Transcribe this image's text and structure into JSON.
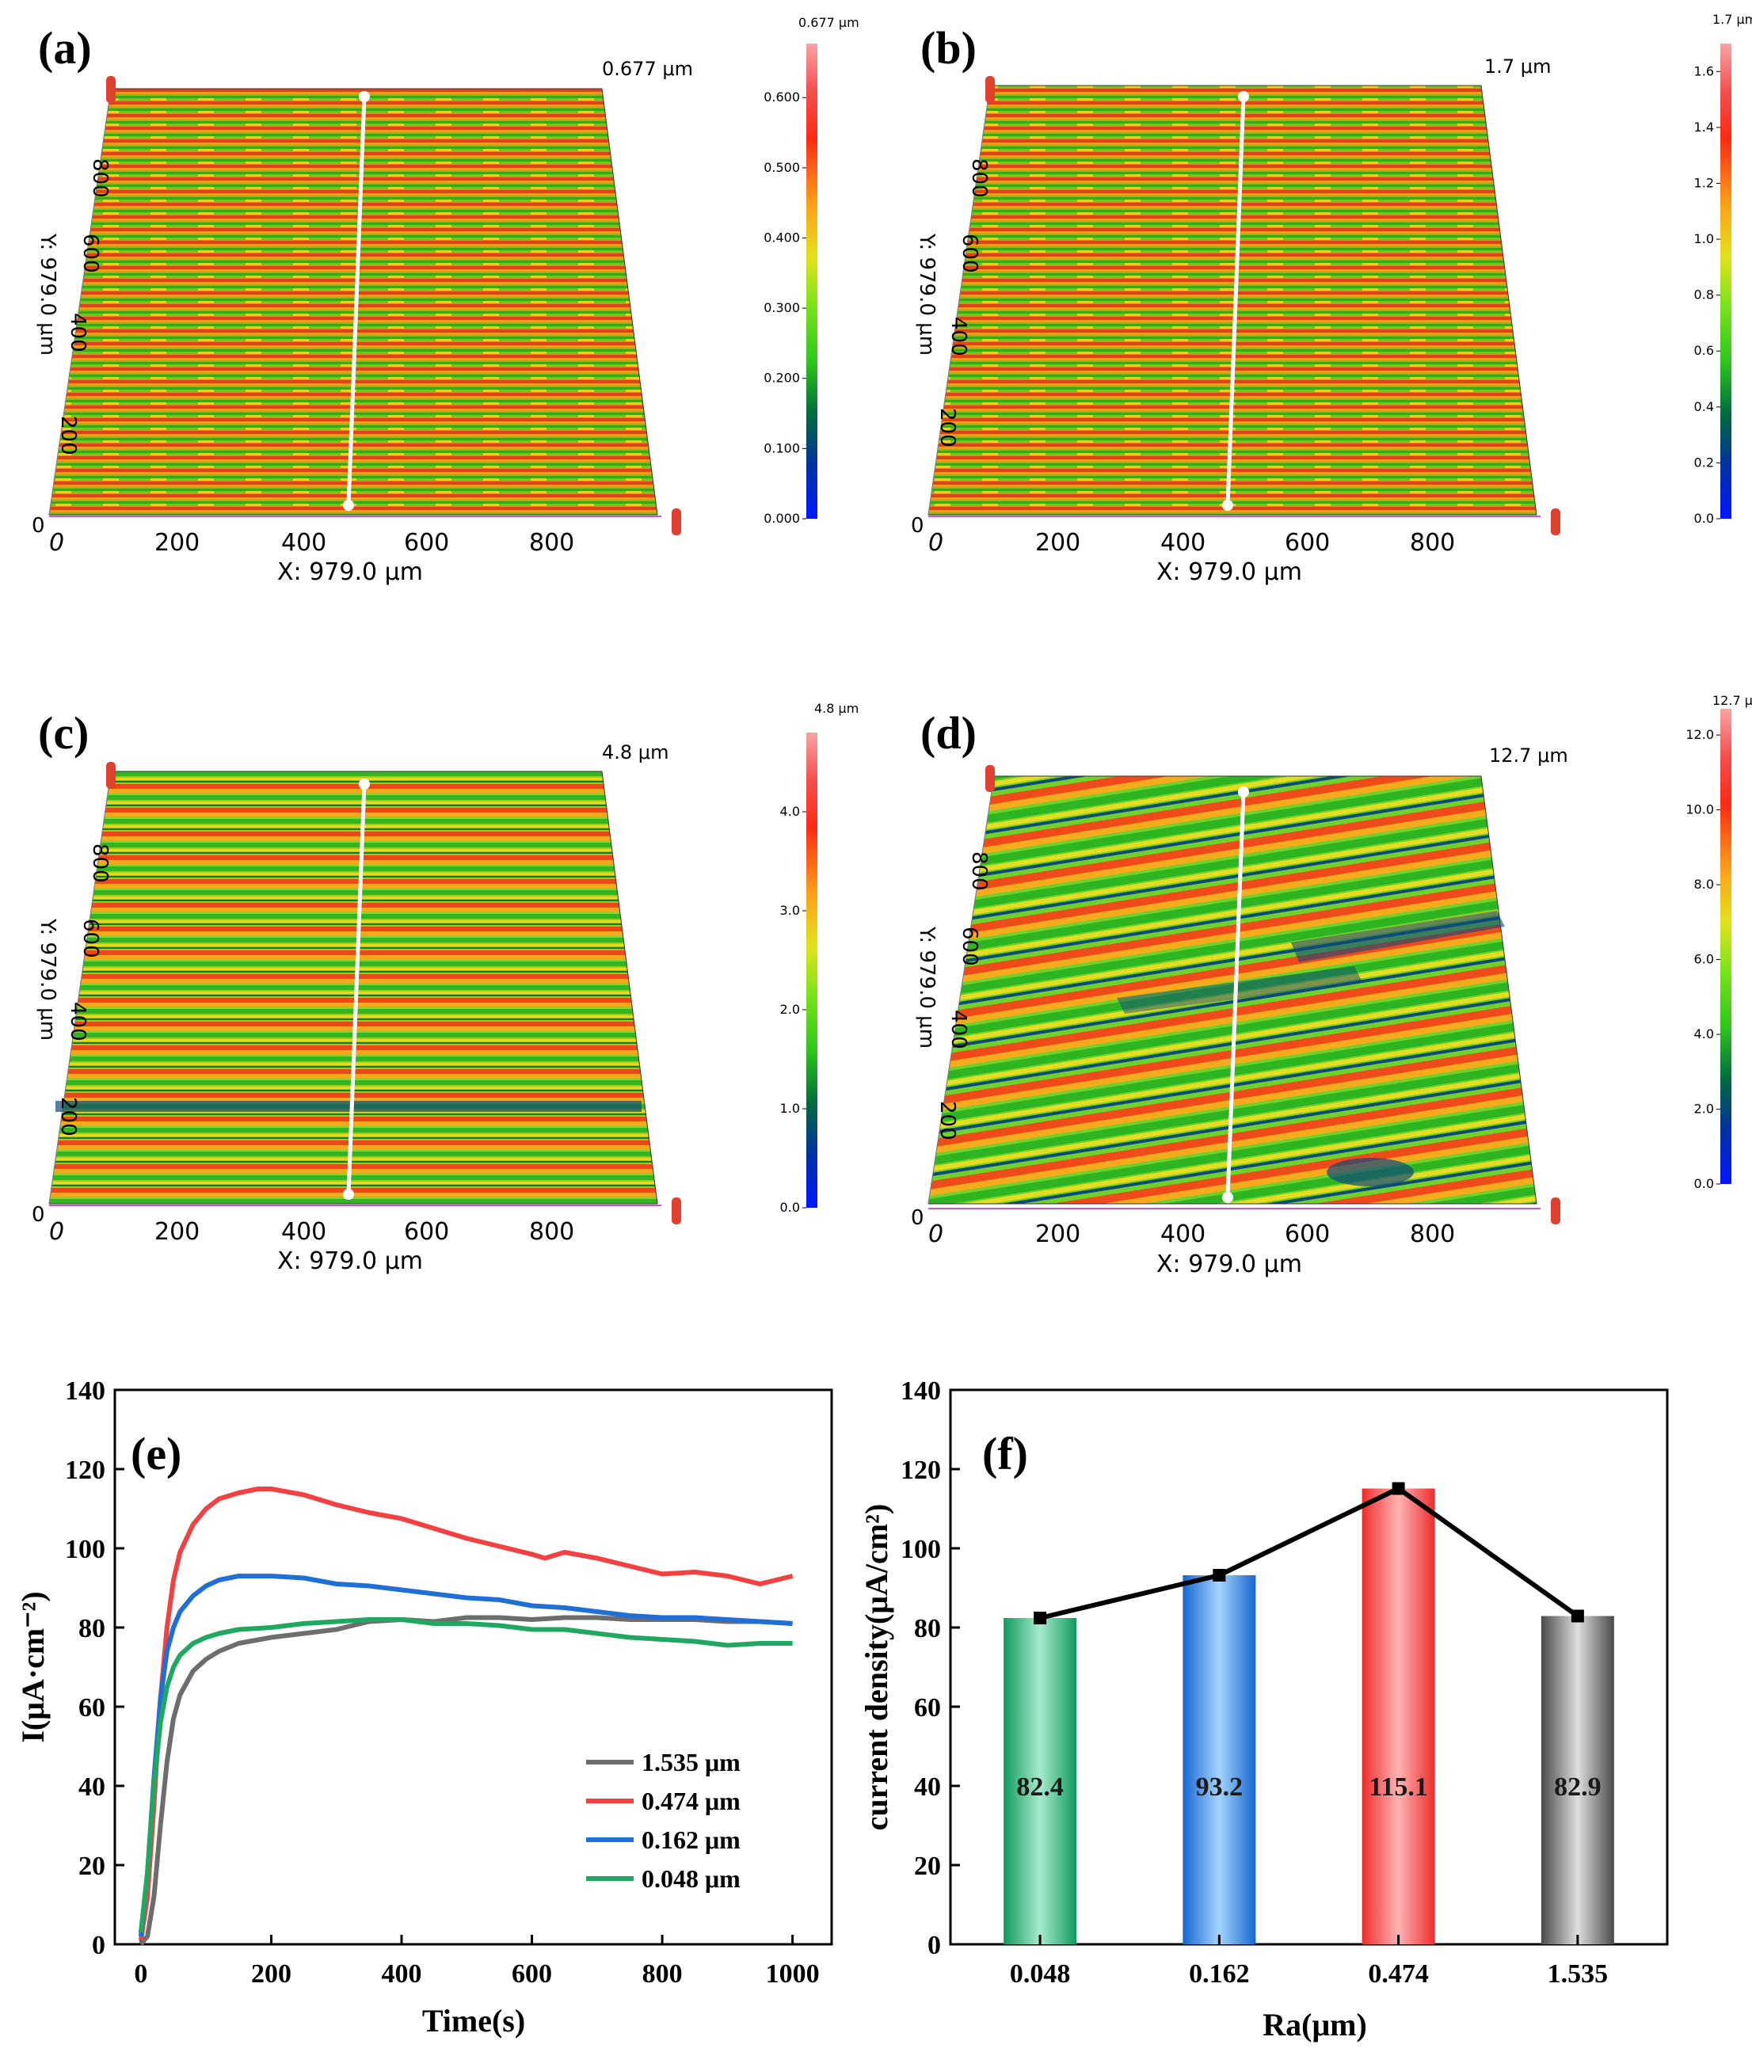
{
  "surface_panels": [
    {
      "id": "a",
      "label": "(a)",
      "max_label": "0.677 μm",
      "cb_top": "0.677 μm",
      "cb_ticks": [
        "0.000",
        "0.100",
        "0.200",
        "0.300",
        "0.400",
        "0.500",
        "0.600"
      ],
      "cb_values": [
        0,
        0.1,
        0.2,
        0.3,
        0.4,
        0.5,
        0.6
      ],
      "cb_max": 0.677,
      "x_title": "X: 979.0 μm",
      "y_title": "Y: 979.0 μm",
      "x_ticks": [
        "0",
        "200",
        "400",
        "600",
        "800"
      ],
      "y_ticks": [
        "0",
        "200",
        "400",
        "600",
        "800"
      ]
    },
    {
      "id": "b",
      "label": "(b)",
      "max_label": "1.7 μm",
      "cb_top": "1.7 μm",
      "cb_ticks": [
        "0.0",
        "0.2",
        "0.4",
        "0.6",
        "0.8",
        "1.0",
        "1.2",
        "1.4",
        "1.6"
      ],
      "cb_values": [
        0,
        0.2,
        0.4,
        0.6,
        0.8,
        1.0,
        1.2,
        1.4,
        1.6
      ],
      "cb_max": 1.7,
      "x_title": "X: 979.0 μm",
      "y_title": "Y: 979.0 μm",
      "x_ticks": [
        "0",
        "200",
        "400",
        "600",
        "800"
      ],
      "y_ticks": [
        "0",
        "200",
        "400",
        "600",
        "800"
      ]
    },
    {
      "id": "c",
      "label": "(c)",
      "max_label": "4.8 μm",
      "cb_top": "4.8 μm",
      "cb_ticks": [
        "0.0",
        "1.0",
        "2.0",
        "3.0",
        "4.0"
      ],
      "cb_values": [
        0,
        1,
        2,
        3,
        4
      ],
      "cb_max": 4.8,
      "x_title": "X: 979.0 μm",
      "y_title": "Y: 979.0 μm",
      "x_ticks": [
        "0",
        "200",
        "400",
        "600",
        "800"
      ],
      "y_ticks": [
        "0",
        "200",
        "400",
        "600",
        "800"
      ]
    },
    {
      "id": "d",
      "label": "(d)",
      "max_label": "12.7 μm",
      "cb_top": "12.7 μm",
      "cb_ticks": [
        "0.0",
        "2.0",
        "4.0",
        "6.0",
        "8.0",
        "10.0",
        "12.0"
      ],
      "cb_values": [
        0,
        2,
        4,
        6,
        8,
        10,
        12
      ],
      "cb_max": 12.7,
      "x_title": "X: 979.0 μm",
      "y_title": "Y: 979.0 μm",
      "x_ticks": [
        "0",
        "200",
        "400",
        "600",
        "800"
      ],
      "y_ticks": [
        "0",
        "200",
        "400",
        "600",
        "800"
      ]
    }
  ],
  "chart_data": [
    {
      "id": "e",
      "label": "(e)",
      "type": "line",
      "xlabel": "Time(s)",
      "ylabel": "I(μA·cm⁻²)",
      "xlim": [
        -40,
        1060
      ],
      "ylim": [
        0,
        140
      ],
      "xticks": [
        0,
        200,
        400,
        600,
        800,
        1000
      ],
      "yticks": [
        0,
        20,
        40,
        60,
        80,
        100,
        120,
        140
      ],
      "series": [
        {
          "name": "1.535 μm",
          "color": "#6d6d6d",
          "x": [
            0,
            10,
            20,
            30,
            40,
            50,
            60,
            80,
            100,
            120,
            150,
            200,
            250,
            300,
            350,
            400,
            450,
            500,
            550,
            600,
            650,
            700,
            750,
            800,
            850,
            900,
            950,
            1000
          ],
          "y": [
            0,
            2,
            12,
            30,
            46,
            57,
            63,
            69,
            72,
            74,
            76,
            77.5,
            78.5,
            79.5,
            81.5,
            82,
            81.5,
            82.5,
            82.5,
            82,
            82.5,
            82.5,
            82,
            82,
            82,
            81.5,
            81.5,
            81
          ]
        },
        {
          "name": "0.474 μm",
          "color": "#f24141",
          "x": [
            0,
            10,
            20,
            30,
            40,
            50,
            60,
            80,
            100,
            120,
            150,
            180,
            200,
            250,
            300,
            350,
            400,
            450,
            500,
            550,
            600,
            620,
            650,
            700,
            750,
            800,
            850,
            900,
            950,
            1000
          ],
          "y": [
            1,
            12,
            35,
            62,
            80,
            92,
            99,
            106,
            110,
            112.5,
            114,
            115,
            115,
            113.5,
            111,
            109,
            107.5,
            105,
            102.5,
            100.5,
            98.5,
            97.5,
            99,
            97.5,
            95.5,
            93.5,
            94,
            93,
            91,
            93
          ]
        },
        {
          "name": "0.162 μm",
          "color": "#1f6fd6",
          "x": [
            0,
            10,
            20,
            30,
            40,
            50,
            60,
            80,
            100,
            120,
            150,
            200,
            250,
            300,
            350,
            400,
            450,
            500,
            550,
            600,
            650,
            700,
            750,
            800,
            850,
            900,
            950,
            1000
          ],
          "y": [
            2,
            18,
            42,
            62,
            74,
            80,
            84,
            88,
            90.5,
            92,
            93,
            93,
            92.5,
            91,
            90.5,
            89.5,
            88.5,
            87.5,
            87,
            85.5,
            85,
            84,
            83,
            82.5,
            82.5,
            82,
            81.5,
            81
          ]
        },
        {
          "name": "0.048 μm",
          "color": "#20a860",
          "x": [
            0,
            10,
            20,
            30,
            40,
            50,
            60,
            80,
            100,
            120,
            150,
            200,
            250,
            300,
            350,
            400,
            450,
            500,
            550,
            600,
            650,
            700,
            750,
            800,
            850,
            900,
            950,
            1000
          ],
          "y": [
            3,
            18,
            40,
            56,
            65,
            70,
            73,
            76,
            77.5,
            78.5,
            79.5,
            80,
            81,
            81.5,
            82,
            82,
            81,
            81,
            80.5,
            79.5,
            79.5,
            78.5,
            77.5,
            77,
            76.5,
            75.5,
            76,
            76
          ]
        }
      ]
    },
    {
      "id": "f",
      "label": "(f)",
      "type": "bar",
      "xlabel": "Ra(μm)",
      "ylabel": "current density(μA/cm²)",
      "ylim": [
        0,
        140
      ],
      "yticks": [
        0,
        20,
        40,
        60,
        80,
        100,
        120,
        140
      ],
      "categories": [
        "0.048",
        "0.162",
        "0.474",
        "1.535"
      ],
      "values": [
        82.4,
        93.2,
        115.1,
        82.9
      ],
      "value_labels": [
        "82.4",
        "93.2",
        "115.1",
        "82.9"
      ],
      "colors": [
        "#25b577",
        "#2f86e6",
        "#f54848",
        "#6a6a6a"
      ],
      "line_overlay": true
    }
  ]
}
